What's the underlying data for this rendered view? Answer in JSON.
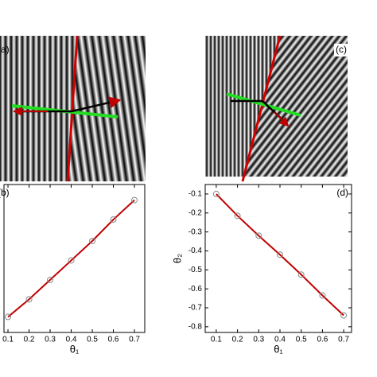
{
  "images": [
    {
      "label": "(a)"
    },
    {
      "label": "(c)"
    }
  ],
  "chart_data": [
    {
      "type": "line",
      "panel_label": "(b)",
      "x_label": "θ₁",
      "x": [
        0.1,
        0.2,
        0.3,
        0.4,
        0.5,
        0.6,
        0.7
      ],
      "values": [
        0.1,
        0.19,
        0.29,
        0.39,
        0.49,
        0.6,
        0.7
      ],
      "color": "#c00000",
      "marker_color": "#888888",
      "xlim": [
        0.081,
        0.749
      ],
      "ylim": [
        0.02,
        0.78
      ],
      "xticks": [
        0.1,
        0.2,
        0.3,
        0.4,
        0.5,
        0.6,
        0.7
      ]
    },
    {
      "type": "line",
      "panel_label": "(d)",
      "x_label": "θ₁",
      "y_label": "θ₂",
      "x": [
        0.1,
        0.2,
        0.3,
        0.4,
        0.5,
        0.6,
        0.7
      ],
      "values": [
        -0.1,
        -0.215,
        -0.32,
        -0.42,
        -0.525,
        -0.635,
        -0.74
      ],
      "color": "#c00000",
      "marker_color": "#888888",
      "xlim": [
        0.048,
        0.737
      ],
      "ylim": [
        -0.83,
        -0.05
      ],
      "xticks": [
        0.1,
        0.2,
        0.3,
        0.4,
        0.5,
        0.6,
        0.7
      ],
      "yticks": [
        -0.1,
        -0.2,
        -0.3,
        -0.4,
        -0.5,
        -0.6,
        -0.7,
        -0.8
      ]
    }
  ]
}
